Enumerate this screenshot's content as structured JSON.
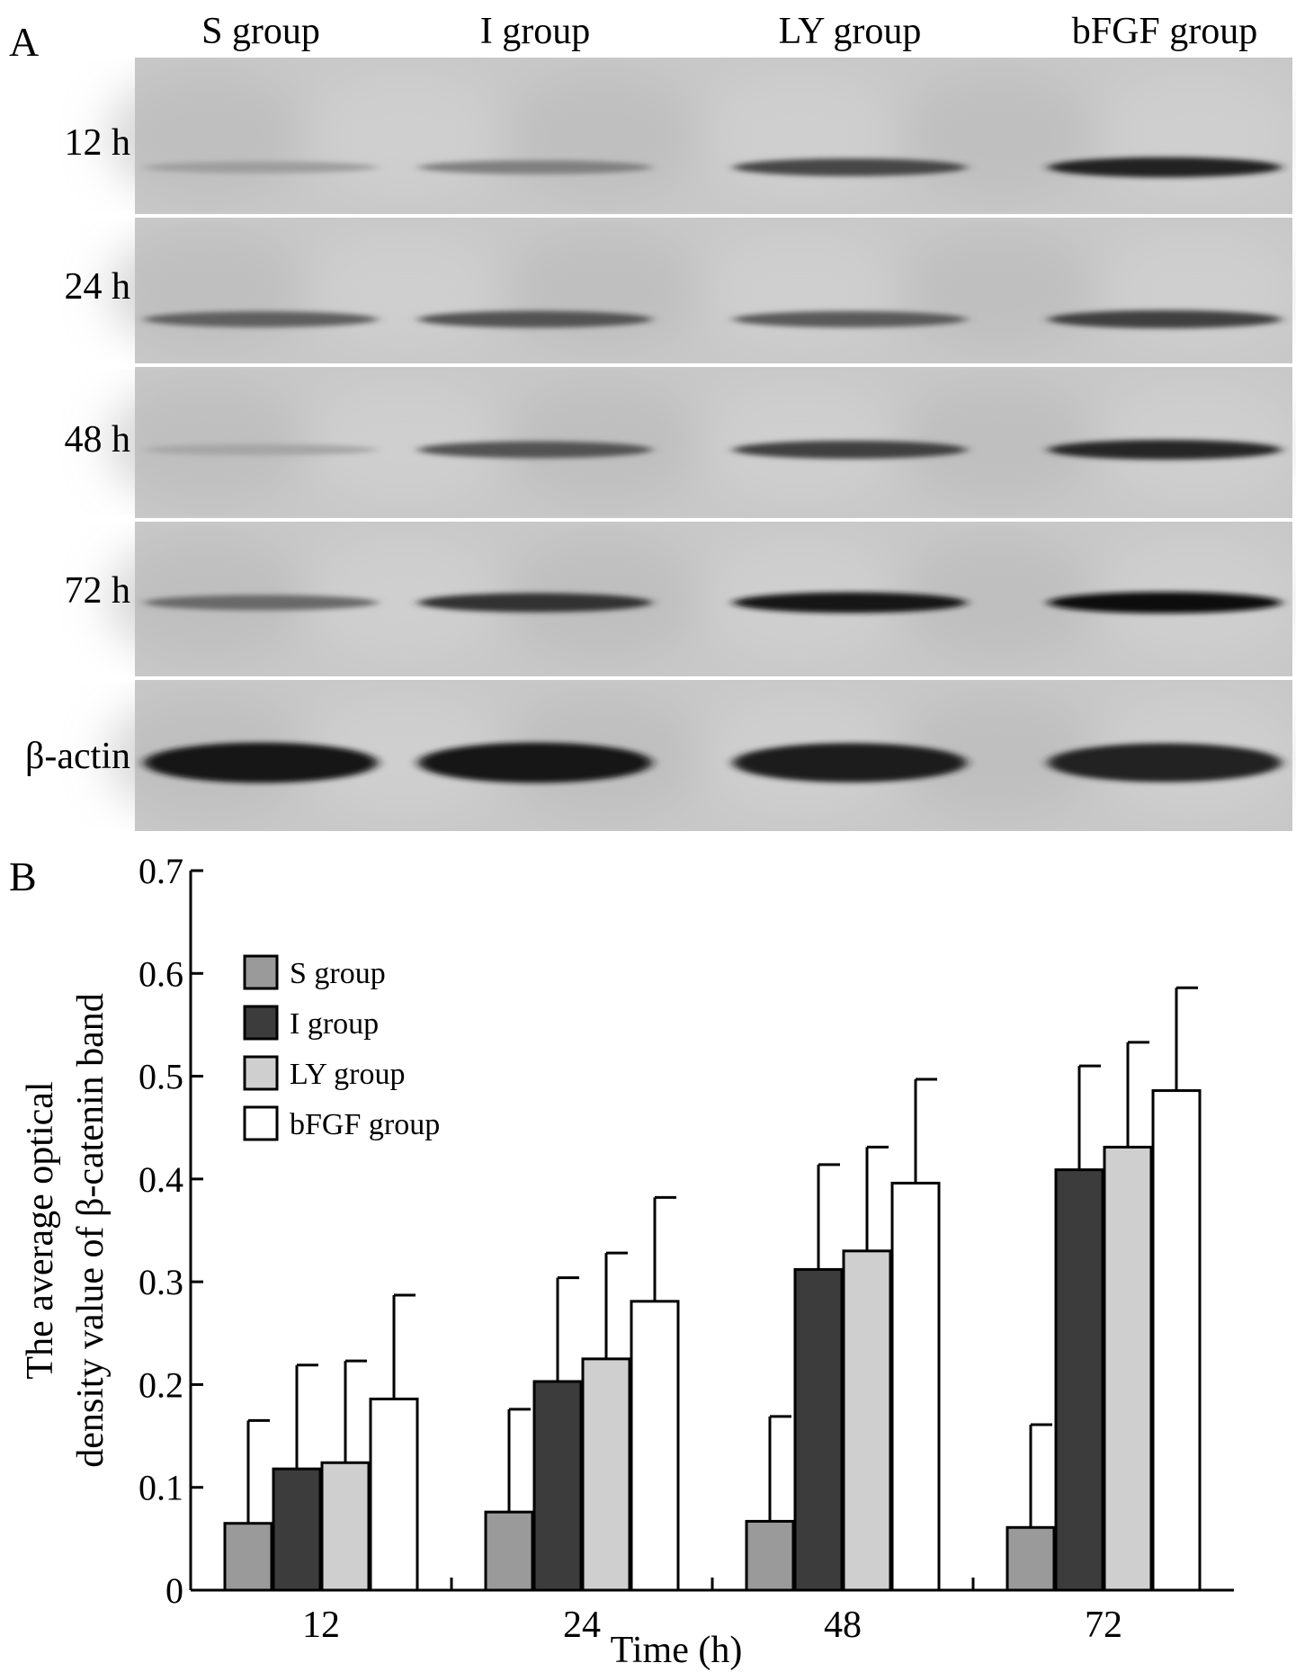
{
  "panel_a": {
    "label": "A",
    "columns": [
      "S group",
      "I group",
      "LY group",
      "bFGF group"
    ],
    "row_labels": [
      "12 h",
      "24 h",
      "48 h",
      "72 h",
      "β-actin"
    ],
    "band_intensity_scale": "0-1 relative darkness",
    "bands": [
      [
        0.22,
        0.38,
        0.68,
        0.88
      ],
      [
        0.55,
        0.62,
        0.58,
        0.72
      ],
      [
        0.18,
        0.62,
        0.72,
        0.85
      ],
      [
        0.5,
        0.8,
        0.92,
        0.98
      ],
      [
        0.95,
        0.95,
        0.9,
        0.88
      ]
    ]
  },
  "panel_b": {
    "label": "B"
  },
  "chart_data": {
    "type": "bar",
    "categories": [
      "12",
      "24",
      "48",
      "72"
    ],
    "xlabel": "Time (h)",
    "ylabel_lines": [
      "The average optical",
      "density value of β-catenin band"
    ],
    "ylim": [
      0,
      0.7
    ],
    "yticks": [
      "0",
      "0.1",
      "0.2",
      "0.3",
      "0.4",
      "0.5",
      "0.6",
      "0.7"
    ],
    "legend_position": "top-left",
    "series": [
      {
        "name": "S group",
        "color": "#9a9a9a",
        "values": [
          0.065,
          0.076,
          0.067,
          0.061
        ],
        "errors": [
          0.1,
          0.1,
          0.102,
          0.1
        ]
      },
      {
        "name": "I group",
        "color": "#3c3c3c",
        "values": [
          0.118,
          0.203,
          0.312,
          0.409
        ],
        "errors": [
          0.101,
          0.101,
          0.102,
          0.101
        ]
      },
      {
        "name": "LY group",
        "color": "#cfcfcf",
        "values": [
          0.124,
          0.225,
          0.33,
          0.431
        ],
        "errors": [
          0.099,
          0.103,
          0.101,
          0.102
        ]
      },
      {
        "name": "bFGF group",
        "color": "#ffffff",
        "values": [
          0.186,
          0.281,
          0.396,
          0.486
        ],
        "errors": [
          0.101,
          0.101,
          0.101,
          0.1
        ]
      }
    ]
  }
}
